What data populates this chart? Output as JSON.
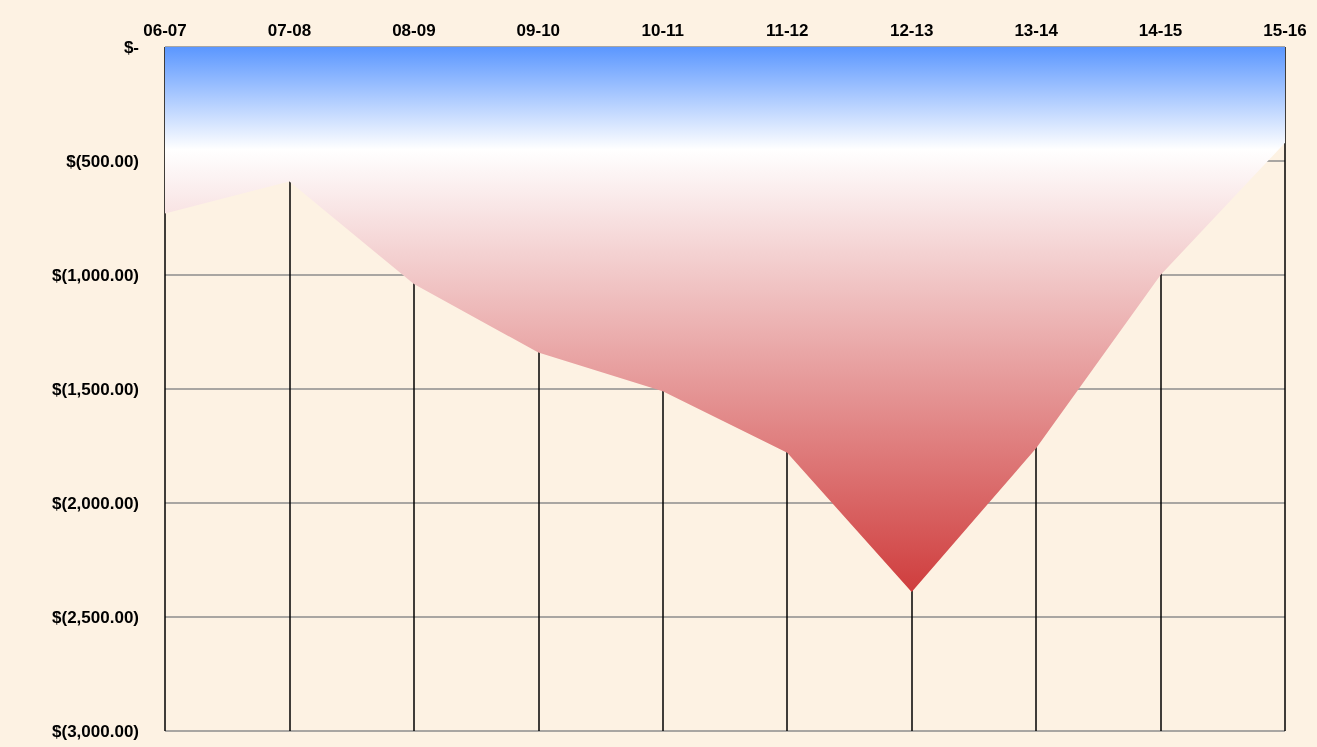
{
  "chart_data": {
    "type": "area",
    "categories": [
      "06-07",
      "07-08",
      "08-09",
      "09-10",
      "10-11",
      "11-12",
      "12-13",
      "13-14",
      "14-15",
      "15-16"
    ],
    "series": [
      {
        "color": "#c00000",
        "values": [
          -730,
          -590,
          -1040,
          -1340,
          -1510,
          -1780,
          -2390,
          -1760,
          -1000,
          -420
        ]
      }
    ],
    "ylim": [
      -3000,
      0
    ],
    "yticks": [
      {
        "value": 0,
        "label": "$-"
      },
      {
        "value": -500,
        "label": "$(500.00)"
      },
      {
        "value": -1000,
        "label": "$(1,000.00)"
      },
      {
        "value": -1500,
        "label": "$(1,500.00)"
      },
      {
        "value": -2000,
        "label": "$(2,000.00)"
      },
      {
        "value": -2500,
        "label": "$(2,500.00)"
      },
      {
        "value": -3000,
        "label": "$(3,000.00)"
      }
    ],
    "grid": true
  }
}
